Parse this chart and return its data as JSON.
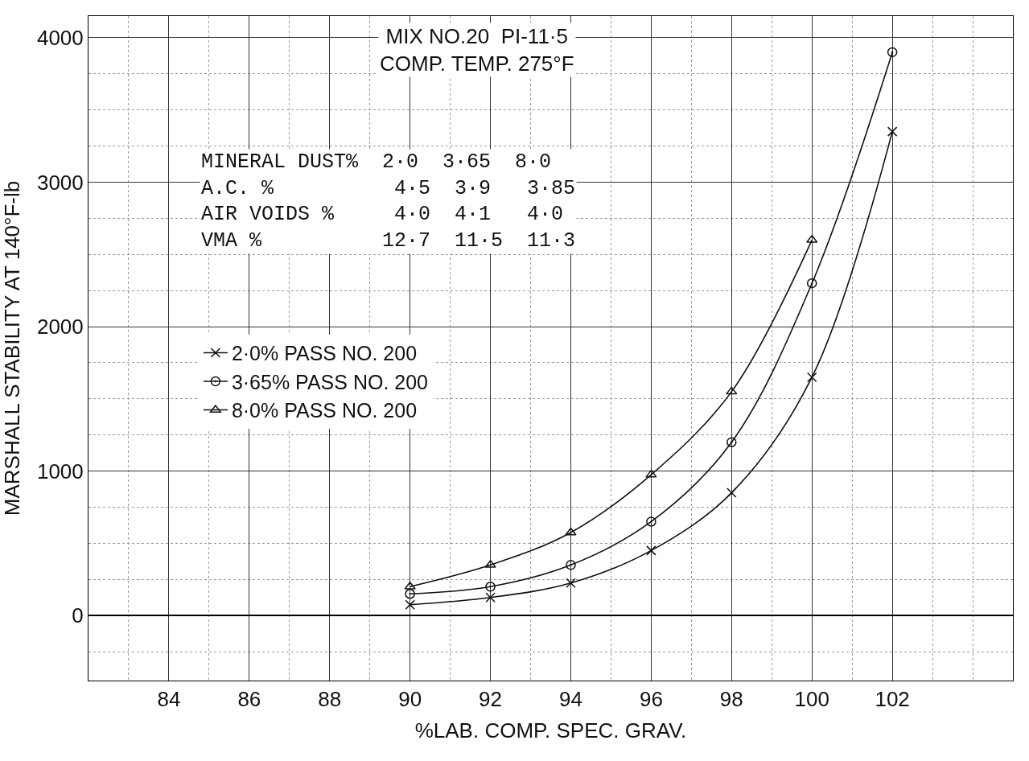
{
  "chart_data": {
    "type": "line",
    "title": "MIX NO.20  PI-11·5",
    "subtitle": "COMP. TEMP. 275°F",
    "xlabel": "%LAB. COMP. SPEC. GRAV.",
    "ylabel": "MARSHALL STABILITY AT 140°F-lb",
    "annotations": [
      "MINERAL DUST%  2·0  3·65  8·0",
      "A.C. %          4·5  3·9   3·85",
      "AIR VOIDS %     4·0  4·1   4·0",
      "VMA %          12·7  11·5  11·3"
    ],
    "x": [
      90,
      92,
      94,
      96,
      98,
      100,
      102
    ],
    "series": [
      {
        "name": "2·0% PASS NO. 200",
        "color": "#111111",
        "marker": "cross",
        "values": [
          75,
          125,
          225,
          450,
          850,
          1650,
          3350
        ]
      },
      {
        "name": "3·65% PASS NO. 200",
        "color": "#111111",
        "marker": "circle",
        "values": [
          150,
          200,
          350,
          650,
          1200,
          2300,
          3900
        ]
      },
      {
        "name": "8·0% PASS NO. 200",
        "color": "#111111",
        "marker": "triangle",
        "values": [
          200,
          350,
          575,
          975,
          1550,
          2600,
          null
        ]
      }
    ],
    "xlim": [
      82,
      105
    ],
    "ylim": [
      -450,
      4150
    ],
    "xticks": [
      84,
      86,
      88,
      90,
      92,
      94,
      96,
      98,
      100,
      102
    ],
    "yticks": [
      0,
      1000,
      2000,
      3000,
      4000
    ],
    "grid": true,
    "legend": "left",
    "line_style": "solid"
  }
}
